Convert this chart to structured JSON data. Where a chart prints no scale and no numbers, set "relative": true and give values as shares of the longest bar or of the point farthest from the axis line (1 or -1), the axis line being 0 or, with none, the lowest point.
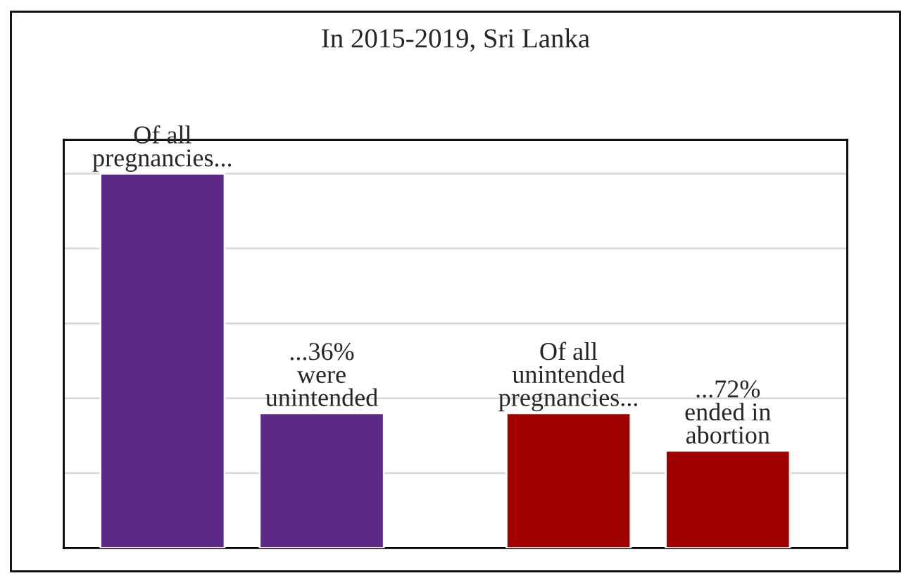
{
  "chart_data": {
    "type": "bar",
    "title": "In 2015-2019, Sri Lanka",
    "relative": true,
    "categories": [
      "Of all\npregnancies...",
      "...36%\nwere\nunintended",
      "Of all\nunintended\npregnancies...",
      "...72%\nended in\nabortion"
    ],
    "values": [
      1,
      0.36,
      0.36,
      0.26
    ],
    "colors": [
      "#5c2a86",
      "#5c2a86",
      "#a00000",
      "#a00000"
    ],
    "grid": "y",
    "legend": false
  }
}
